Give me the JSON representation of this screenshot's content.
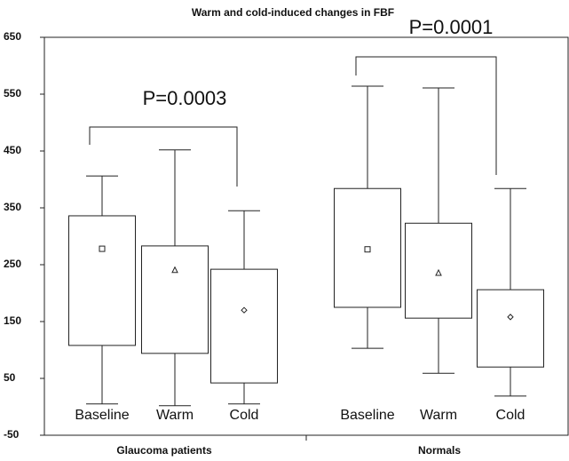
{
  "chart_data": {
    "type": "box",
    "title": "Warm and cold-induced changes in FBF",
    "ylim": [
      -50,
      650
    ],
    "yticks": [
      -50,
      50,
      150,
      250,
      350,
      450,
      550,
      650
    ],
    "groups": [
      {
        "name": "Glaucoma patients",
        "categories": [
          "Baseline",
          "Warm",
          "Cold"
        ],
        "min": [
          5,
          2,
          5
        ],
        "q1": [
          108,
          94,
          42
        ],
        "q3": [
          336,
          283,
          242
        ],
        "max": [
          406,
          452,
          345
        ],
        "mean": [
          278,
          241,
          170
        ]
      },
      {
        "name": "Normals",
        "categories": [
          "Baseline",
          "Warm",
          "Cold"
        ],
        "min": [
          103,
          59,
          19
        ],
        "q1": [
          175,
          156,
          70
        ],
        "q3": [
          384,
          323,
          206
        ],
        "max": [
          564,
          561,
          384
        ],
        "mean": [
          277,
          236,
          158
        ]
      }
    ],
    "annotations": [
      {
        "text": "P=0.0003"
      },
      {
        "text": "P=0.0001"
      }
    ]
  }
}
